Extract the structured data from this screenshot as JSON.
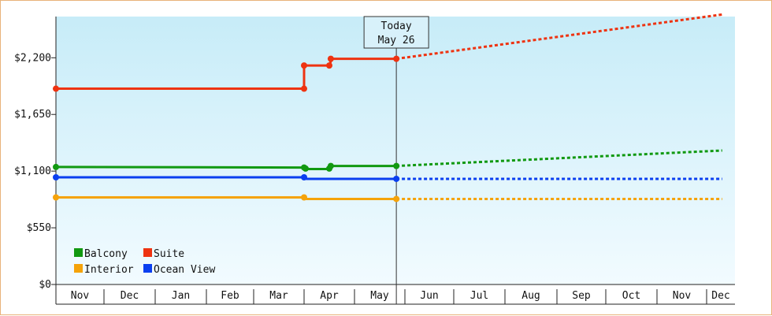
{
  "chart_data": {
    "type": "line",
    "today": {
      "line1": "Today",
      "line2": "May 26",
      "x": 6.83
    },
    "months": [
      "Nov",
      "Dec",
      "Jan",
      "Feb",
      "Mar",
      "Apr",
      "May",
      "Jun",
      "Jul",
      "Aug",
      "Sep",
      "Oct",
      "Nov",
      "Dec"
    ],
    "y_ticks": [
      {
        "value": 0,
        "label": "$0"
      },
      {
        "value": 550,
        "label": "$550"
      },
      {
        "value": 1100,
        "label": "$1,100"
      },
      {
        "value": 1650,
        "label": "$1,650"
      },
      {
        "value": 2200,
        "label": "$2,200"
      }
    ],
    "ylim": [
      0,
      2600
    ],
    "xlim": [
      0,
      13.55
    ],
    "grid": false,
    "legend_position": "bottom-left",
    "series": [
      {
        "name": "Balcony",
        "color": "#119911",
        "points": [
          [
            0,
            1140
          ],
          [
            5.0,
            1135
          ],
          [
            5.05,
            1120
          ],
          [
            5.5,
            1120
          ],
          [
            5.55,
            1150
          ],
          [
            6.83,
            1150
          ]
        ],
        "markers": [
          [
            0,
            1140
          ],
          [
            5.0,
            1135
          ],
          [
            5.03,
            1125
          ],
          [
            5.5,
            1125
          ],
          [
            5.53,
            1150
          ],
          [
            6.83,
            1150
          ]
        ],
        "forecast": [
          [
            6.83,
            1150
          ],
          [
            13.55,
            1300
          ]
        ]
      },
      {
        "name": "Suite",
        "color": "#ee3311",
        "points": [
          [
            0,
            1900
          ],
          [
            5.0,
            1900
          ],
          [
            5.0,
            2125
          ],
          [
            5.5,
            2125
          ],
          [
            5.55,
            2190
          ],
          [
            6.83,
            2190
          ]
        ],
        "markers": [
          [
            0,
            1900
          ],
          [
            5.0,
            1900
          ],
          [
            5.0,
            2125
          ],
          [
            5.5,
            2125
          ],
          [
            5.53,
            2190
          ],
          [
            6.83,
            2190
          ]
        ],
        "forecast": [
          [
            6.83,
            2190
          ],
          [
            13.55,
            2620
          ]
        ]
      },
      {
        "name": "Interior",
        "color": "#f5a30a",
        "points": [
          [
            0,
            845
          ],
          [
            5.0,
            845
          ],
          [
            5.05,
            830
          ],
          [
            6.83,
            830
          ]
        ],
        "markers": [
          [
            0,
            845
          ],
          [
            5.0,
            845
          ],
          [
            6.83,
            830
          ]
        ],
        "forecast": [
          [
            6.83,
            830
          ],
          [
            13.55,
            830
          ]
        ]
      },
      {
        "name": "Ocean View",
        "color": "#0a3ff0",
        "points": [
          [
            0,
            1040
          ],
          [
            5.0,
            1040
          ],
          [
            5.05,
            1025
          ],
          [
            6.83,
            1025
          ]
        ],
        "markers": [
          [
            0,
            1040
          ],
          [
            5.0,
            1040
          ],
          [
            6.83,
            1025
          ]
        ],
        "forecast": [
          [
            6.83,
            1025
          ],
          [
            13.55,
            1025
          ]
        ]
      }
    ]
  }
}
